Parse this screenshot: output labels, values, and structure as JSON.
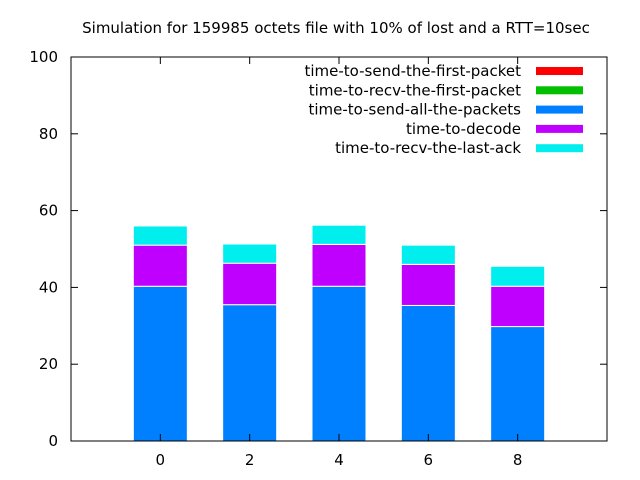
{
  "chart_data": {
    "type": "bar",
    "stacked": true,
    "title": "Simulation for 159985 octets file with 10% of lost and a RTT=10sec",
    "xlabel": "",
    "ylabel": "",
    "categories": [
      "0",
      "2",
      "4",
      "6",
      "8"
    ],
    "x": [
      0,
      2,
      4,
      6,
      8
    ],
    "xlim": [
      -2,
      10
    ],
    "ylim": [
      0,
      100
    ],
    "yticks": [
      "0",
      "20",
      "40",
      "60",
      "80",
      "100"
    ],
    "legend_position": "top-right",
    "grid": false,
    "series": [
      {
        "name": "time-to-send-the-first-packet",
        "color": "#ff0000",
        "values": [
          0,
          0,
          0,
          0,
          0
        ]
      },
      {
        "name": "time-to-recv-the-first-packet",
        "color": "#00c000",
        "values": [
          0,
          0,
          0,
          0,
          0
        ]
      },
      {
        "name": "time-to-send-all-the-packets",
        "color": "#0080ff",
        "values": [
          40.3,
          35.5,
          40.3,
          35.3,
          29.8
        ]
      },
      {
        "name": "time-to-decode",
        "color": "#c000ff",
        "values": [
          10.7,
          10.8,
          10.9,
          10.7,
          10.5
        ]
      },
      {
        "name": "time-to-recv-the-last-ack",
        "color": "#00eeee",
        "values": [
          5.0,
          5.0,
          5.0,
          5.0,
          5.2
        ]
      }
    ]
  }
}
